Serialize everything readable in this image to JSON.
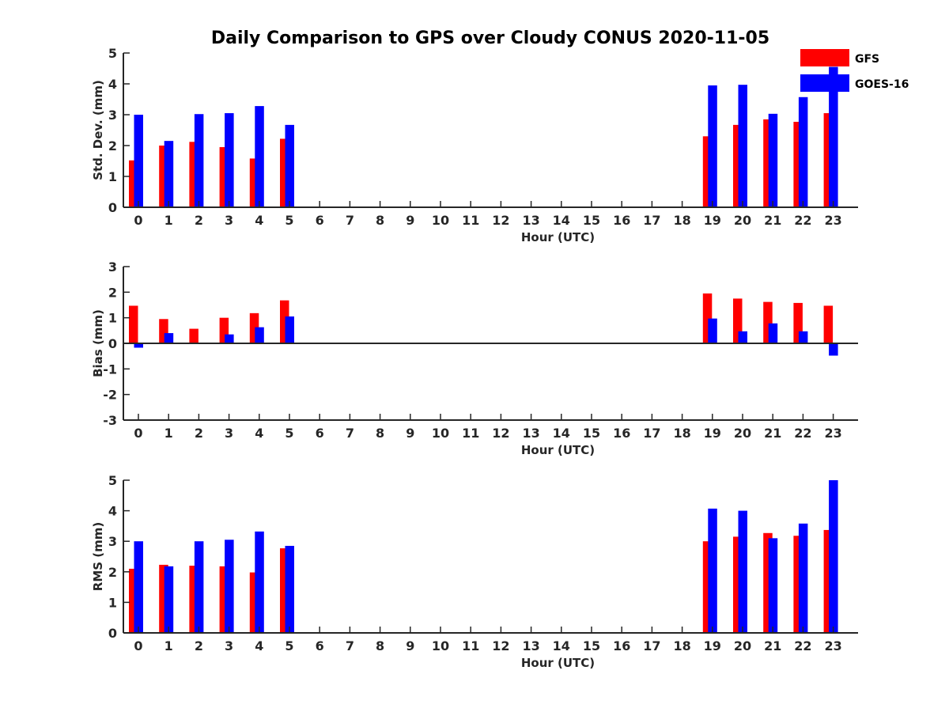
{
  "chart_data": [
    {
      "type": "bar",
      "title": "Daily Comparison to GPS over Cloudy CONUS 2020-11-05",
      "xlabel": "Hour (UTC)",
      "ylabel": "Std. Dev. (mm)",
      "ylim": [
        0,
        5
      ],
      "yticks": [
        "0",
        "1",
        "2",
        "3",
        "4",
        "5"
      ],
      "categories": [
        "0",
        "1",
        "2",
        "3",
        "4",
        "5",
        "6",
        "7",
        "8",
        "9",
        "10",
        "11",
        "12",
        "13",
        "14",
        "15",
        "16",
        "17",
        "18",
        "19",
        "20",
        "21",
        "22",
        "23"
      ],
      "series": [
        {
          "name": "GFS",
          "values": [
            1.52,
            2.0,
            2.12,
            1.95,
            1.58,
            2.22,
            null,
            null,
            null,
            null,
            null,
            null,
            null,
            null,
            null,
            null,
            null,
            null,
            null,
            2.3,
            2.67,
            2.85,
            2.77,
            3.05
          ]
        },
        {
          "name": "GOES-16",
          "values": [
            3.0,
            2.15,
            3.02,
            3.05,
            3.28,
            2.67,
            null,
            null,
            null,
            null,
            null,
            null,
            null,
            null,
            null,
            null,
            null,
            null,
            null,
            3.95,
            3.97,
            3.03,
            3.57,
            4.55
          ]
        }
      ],
      "legend": "top-right",
      "grid": false
    },
    {
      "type": "bar",
      "xlabel": "Hour (UTC)",
      "ylabel": "Bias (mm)",
      "ylim": [
        -3,
        3
      ],
      "yticks": [
        "-3",
        "-2",
        "-1",
        "0",
        "1",
        "2",
        "3"
      ],
      "categories": [
        "0",
        "1",
        "2",
        "3",
        "4",
        "5",
        "6",
        "7",
        "8",
        "9",
        "10",
        "11",
        "12",
        "13",
        "14",
        "15",
        "16",
        "17",
        "18",
        "19",
        "20",
        "21",
        "22",
        "23"
      ],
      "series": [
        {
          "name": "GFS",
          "values": [
            1.47,
            0.95,
            0.57,
            1.0,
            1.18,
            1.68,
            null,
            null,
            null,
            null,
            null,
            null,
            null,
            null,
            null,
            null,
            null,
            null,
            null,
            1.95,
            1.75,
            1.62,
            1.58,
            1.47
          ]
        },
        {
          "name": "GOES-16",
          "values": [
            -0.17,
            0.4,
            0.0,
            0.35,
            0.63,
            1.05,
            null,
            null,
            null,
            null,
            null,
            null,
            null,
            null,
            null,
            null,
            null,
            null,
            null,
            0.97,
            0.47,
            0.78,
            0.47,
            -0.48
          ]
        }
      ],
      "zero_line": true,
      "grid": false
    },
    {
      "type": "bar",
      "xlabel": "Hour (UTC)",
      "ylabel": "RMS (mm)",
      "ylim": [
        0,
        5
      ],
      "yticks": [
        "0",
        "1",
        "2",
        "3",
        "4",
        "5"
      ],
      "categories": [
        "0",
        "1",
        "2",
        "3",
        "4",
        "5",
        "6",
        "7",
        "8",
        "9",
        "10",
        "11",
        "12",
        "13",
        "14",
        "15",
        "16",
        "17",
        "18",
        "19",
        "20",
        "21",
        "22",
        "23"
      ],
      "series": [
        {
          "name": "GFS",
          "values": [
            2.1,
            2.23,
            2.2,
            2.18,
            1.98,
            2.77,
            null,
            null,
            null,
            null,
            null,
            null,
            null,
            null,
            null,
            null,
            null,
            null,
            null,
            3.0,
            3.15,
            3.27,
            3.18,
            3.37
          ]
        },
        {
          "name": "GOES-16",
          "values": [
            3.0,
            2.18,
            3.0,
            3.05,
            3.32,
            2.85,
            null,
            null,
            null,
            null,
            null,
            null,
            null,
            null,
            null,
            null,
            null,
            null,
            null,
            4.07,
            4.0,
            3.1,
            3.58,
            5.0
          ]
        }
      ],
      "grid": false
    }
  ],
  "legend": {
    "entries": [
      {
        "label": "GFS",
        "color": "#ff0000"
      },
      {
        "label": "GOES-16",
        "color": "#0000ff"
      }
    ]
  },
  "colors": {
    "gfs": "#ff0000",
    "goes": "#0000ff",
    "axis": "#262626"
  }
}
